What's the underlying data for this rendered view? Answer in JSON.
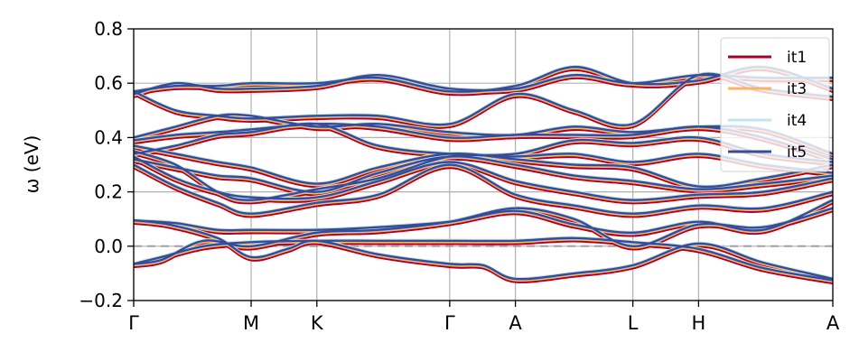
{
  "chart_data": {
    "type": "line",
    "title": "",
    "xlabel": "",
    "ylabel": "ω (eV)",
    "ylim": [
      -0.2,
      0.8
    ],
    "yticks": [
      -0.2,
      0.0,
      0.2,
      0.4,
      0.6,
      0.8
    ],
    "ytick_labels": [
      "−0.2",
      "0.0",
      "0.2",
      "0.4",
      "0.6",
      "0.8"
    ],
    "x_points": [
      {
        "label": "Γ",
        "pos": 0.0
      },
      {
        "label": "M",
        "pos": 0.168
      },
      {
        "label": "K",
        "pos": 0.262
      },
      {
        "label": "Γ",
        "pos": 0.452
      },
      {
        "label": "A",
        "pos": 0.546
      },
      {
        "label": "L",
        "pos": 0.714
      },
      {
        "label": "H",
        "pos": 0.808
      },
      {
        "label": "A",
        "pos": 1.0
      }
    ],
    "grid": true,
    "zero_line": 0.0,
    "legend_position": "top-right",
    "series": [
      {
        "name": "it1",
        "color": "#a50026",
        "width": 2.2,
        "offset": -0.012
      },
      {
        "name": "it3",
        "color": "#fdb366",
        "width": 2.0,
        "offset": -0.006
      },
      {
        "name": "it4",
        "color": "#c2e4ef",
        "width": 2.0,
        "offset": 0.004
      },
      {
        "name": "it5",
        "color": "#364b9a",
        "width": 2.4,
        "offset": 0.0
      }
    ],
    "bands": [
      [
        [
          0,
          -0.065
        ],
        [
          0.04,
          -0.04
        ],
        [
          0.1,
          0.0
        ],
        [
          0.168,
          0.015
        ],
        [
          0.262,
          0.02
        ],
        [
          0.35,
          0.02
        ],
        [
          0.452,
          0.02
        ],
        [
          0.546,
          0.02
        ],
        [
          0.63,
          0.03
        ],
        [
          0.714,
          0.015
        ],
        [
          0.808,
          -0.01
        ],
        [
          0.9,
          -0.08
        ],
        [
          1.0,
          -0.125
        ]
      ],
      [
        [
          0,
          0.095
        ],
        [
          0.05,
          0.08
        ],
        [
          0.12,
          0.03
        ],
        [
          0.168,
          -0.04
        ],
        [
          0.22,
          -0.01
        ],
        [
          0.262,
          0.02
        ],
        [
          0.35,
          -0.03
        ],
        [
          0.452,
          -0.065
        ],
        [
          0.5,
          -0.07
        ],
        [
          0.546,
          -0.12
        ],
        [
          0.63,
          -0.1
        ],
        [
          0.714,
          -0.07
        ],
        [
          0.808,
          0.01
        ],
        [
          0.9,
          -0.06
        ],
        [
          1.0,
          -0.12
        ]
      ],
      [
        [
          0,
          -0.065
        ],
        [
          0.04,
          -0.05
        ],
        [
          0.1,
          0.02
        ],
        [
          0.168,
          0.0
        ],
        [
          0.262,
          0.05
        ],
        [
          0.35,
          0.06
        ],
        [
          0.452,
          0.09
        ],
        [
          0.546,
          0.14
        ],
        [
          0.63,
          0.1
        ],
        [
          0.714,
          0.0
        ],
        [
          0.808,
          0.08
        ],
        [
          0.9,
          0.07
        ],
        [
          1.0,
          0.14
        ]
      ],
      [
        [
          0,
          0.095
        ],
        [
          0.06,
          0.085
        ],
        [
          0.12,
          0.06
        ],
        [
          0.168,
          0.06
        ],
        [
          0.262,
          0.06
        ],
        [
          0.35,
          0.07
        ],
        [
          0.452,
          0.09
        ],
        [
          0.546,
          0.13
        ],
        [
          0.63,
          0.08
        ],
        [
          0.714,
          0.05
        ],
        [
          0.808,
          0.09
        ],
        [
          0.9,
          0.06
        ],
        [
          1.0,
          0.17
        ]
      ],
      [
        [
          0,
          0.3
        ],
        [
          0.06,
          0.22
        ],
        [
          0.12,
          0.16
        ],
        [
          0.168,
          0.12
        ],
        [
          0.262,
          0.16
        ],
        [
          0.35,
          0.19
        ],
        [
          0.452,
          0.3
        ],
        [
          0.546,
          0.19
        ],
        [
          0.63,
          0.15
        ],
        [
          0.714,
          0.12
        ],
        [
          0.808,
          0.15
        ],
        [
          0.9,
          0.14
        ],
        [
          1.0,
          0.2
        ]
      ],
      [
        [
          0,
          0.33
        ],
        [
          0.06,
          0.25
        ],
        [
          0.12,
          0.2
        ],
        [
          0.168,
          0.18
        ],
        [
          0.262,
          0.18
        ],
        [
          0.35,
          0.24
        ],
        [
          0.452,
          0.31
        ],
        [
          0.546,
          0.24
        ],
        [
          0.63,
          0.2
        ],
        [
          0.714,
          0.17
        ],
        [
          0.808,
          0.19
        ],
        [
          0.9,
          0.2
        ],
        [
          1.0,
          0.25
        ]
      ],
      [
        [
          0,
          0.32
        ],
        [
          0.06,
          0.29
        ],
        [
          0.12,
          0.26
        ],
        [
          0.168,
          0.25
        ],
        [
          0.262,
          0.2
        ],
        [
          0.35,
          0.27
        ],
        [
          0.452,
          0.33
        ],
        [
          0.546,
          0.3
        ],
        [
          0.63,
          0.26
        ],
        [
          0.714,
          0.24
        ],
        [
          0.808,
          0.21
        ],
        [
          0.9,
          0.23
        ],
        [
          1.0,
          0.26
        ]
      ],
      [
        [
          0,
          0.37
        ],
        [
          0.06,
          0.34
        ],
        [
          0.12,
          0.31
        ],
        [
          0.168,
          0.29
        ],
        [
          0.262,
          0.23
        ],
        [
          0.35,
          0.29
        ],
        [
          0.452,
          0.34
        ],
        [
          0.546,
          0.32
        ],
        [
          0.63,
          0.3
        ],
        [
          0.714,
          0.29
        ],
        [
          0.808,
          0.22
        ],
        [
          0.9,
          0.25
        ],
        [
          1.0,
          0.3
        ]
      ],
      [
        [
          0,
          0.35
        ],
        [
          0.06,
          0.3
        ],
        [
          0.12,
          0.2
        ],
        [
          0.168,
          0.17
        ],
        [
          0.262,
          0.21
        ],
        [
          0.35,
          0.25
        ],
        [
          0.452,
          0.33
        ],
        [
          0.546,
          0.33
        ],
        [
          0.63,
          0.34
        ],
        [
          0.714,
          0.31
        ],
        [
          0.808,
          0.34
        ],
        [
          0.9,
          0.3
        ],
        [
          1.0,
          0.27
        ]
      ],
      [
        [
          0,
          0.34
        ],
        [
          0.06,
          0.37
        ],
        [
          0.12,
          0.41
        ],
        [
          0.168,
          0.42
        ],
        [
          0.262,
          0.45
        ],
        [
          0.35,
          0.37
        ],
        [
          0.452,
          0.34
        ],
        [
          0.546,
          0.34
        ],
        [
          0.63,
          0.39
        ],
        [
          0.714,
          0.38
        ],
        [
          0.808,
          0.4
        ],
        [
          0.9,
          0.34
        ],
        [
          1.0,
          0.31
        ]
      ],
      [
        [
          0,
          0.39
        ],
        [
          0.06,
          0.41
        ],
        [
          0.12,
          0.42
        ],
        [
          0.168,
          0.43
        ],
        [
          0.262,
          0.45
        ],
        [
          0.35,
          0.44
        ],
        [
          0.452,
          0.4
        ],
        [
          0.546,
          0.41
        ],
        [
          0.63,
          0.41
        ],
        [
          0.714,
          0.41
        ],
        [
          0.808,
          0.44
        ],
        [
          0.9,
          0.4
        ],
        [
          1.0,
          0.32
        ]
      ],
      [
        [
          0,
          0.4
        ],
        [
          0.06,
          0.44
        ],
        [
          0.12,
          0.48
        ],
        [
          0.168,
          0.48
        ],
        [
          0.262,
          0.44
        ],
        [
          0.35,
          0.45
        ],
        [
          0.452,
          0.42
        ],
        [
          0.546,
          0.41
        ],
        [
          0.63,
          0.44
        ],
        [
          0.714,
          0.42
        ],
        [
          0.808,
          0.44
        ],
        [
          0.9,
          0.43
        ],
        [
          1.0,
          0.34
        ]
      ],
      [
        [
          0,
          0.57
        ],
        [
          0.06,
          0.5
        ],
        [
          0.12,
          0.48
        ],
        [
          0.168,
          0.47
        ],
        [
          0.262,
          0.48
        ],
        [
          0.35,
          0.48
        ],
        [
          0.452,
          0.45
        ],
        [
          0.546,
          0.56
        ],
        [
          0.63,
          0.5
        ],
        [
          0.714,
          0.45
        ],
        [
          0.808,
          0.63
        ],
        [
          0.9,
          0.58
        ],
        [
          1.0,
          0.55
        ]
      ],
      [
        [
          0,
          0.57
        ],
        [
          0.06,
          0.59
        ],
        [
          0.12,
          0.59
        ],
        [
          0.168,
          0.6
        ],
        [
          0.262,
          0.6
        ],
        [
          0.35,
          0.62
        ],
        [
          0.452,
          0.57
        ],
        [
          0.546,
          0.59
        ],
        [
          0.63,
          0.66
        ],
        [
          0.714,
          0.6
        ],
        [
          0.808,
          0.61
        ],
        [
          0.9,
          0.66
        ],
        [
          1.0,
          0.58
        ]
      ],
      [
        [
          0,
          0.56
        ],
        [
          0.06,
          0.6
        ],
        [
          0.12,
          0.58
        ],
        [
          0.168,
          0.58
        ],
        [
          0.262,
          0.59
        ],
        [
          0.35,
          0.63
        ],
        [
          0.452,
          0.58
        ],
        [
          0.546,
          0.58
        ],
        [
          0.63,
          0.63
        ],
        [
          0.714,
          0.6
        ],
        [
          0.808,
          0.63
        ],
        [
          0.9,
          0.62
        ],
        [
          1.0,
          0.62
        ]
      ]
    ]
  }
}
